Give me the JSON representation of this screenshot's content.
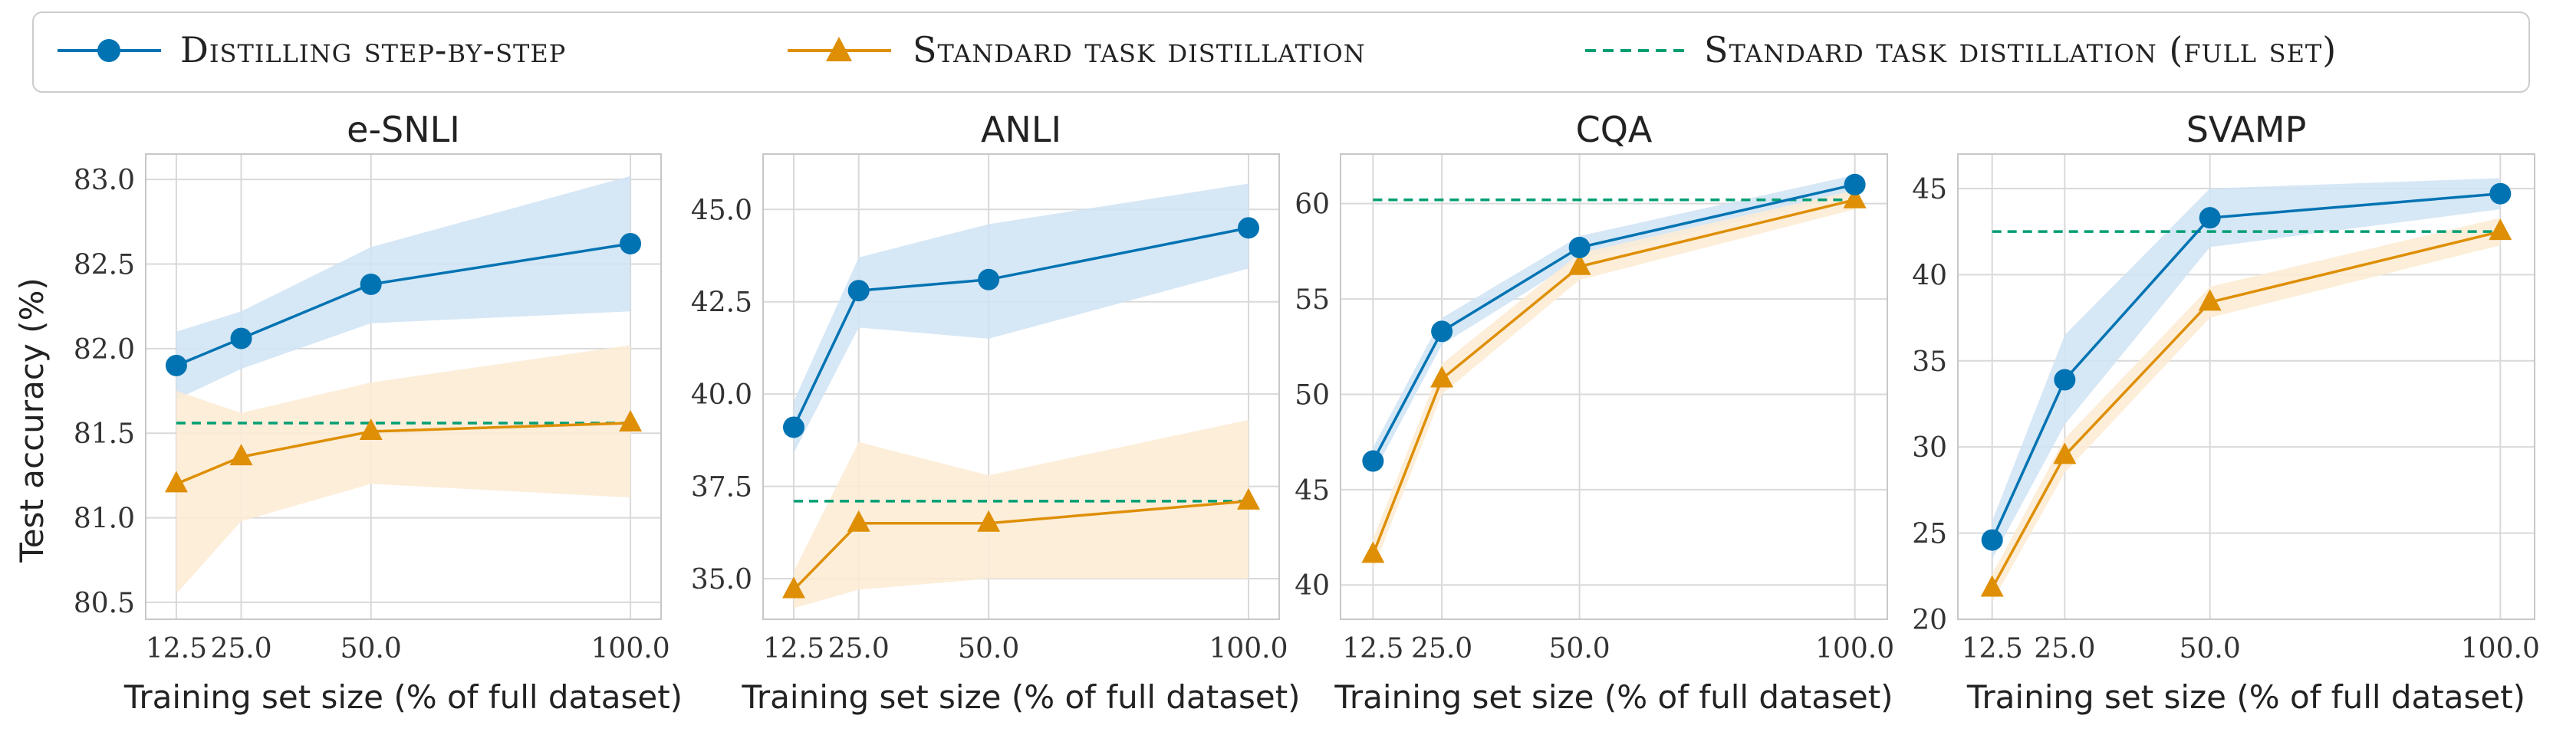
{
  "colors": {
    "blue": "#0173b2",
    "orange": "#de8f05",
    "green": "#029e73",
    "blue_band": "#cfe3f4",
    "orange_band": "#fdebd3"
  },
  "legend": {
    "items": [
      {
        "label": "Distilling step-by-step",
        "marker": "circle",
        "color": "#0173b2",
        "style": "solid"
      },
      {
        "label": "Standard task distillation",
        "marker": "triangle",
        "color": "#de8f05",
        "style": "solid"
      },
      {
        "label": "Standard task distillation (full set)",
        "marker": "none",
        "color": "#029e73",
        "style": "dashed"
      }
    ]
  },
  "ylabel_shared": "Test accuracy (%)",
  "chart_data": [
    {
      "type": "line",
      "title": "e-SNLI",
      "xlabel": "Training set size (% of full dataset)",
      "x": [
        12.5,
        25.0,
        50.0,
        100.0
      ],
      "xticks": [
        "12.5",
        "25.0",
        "50.0",
        "100.0"
      ],
      "ylim": [
        80.4,
        83.15
      ],
      "yticks": [
        "80.5",
        "81.0",
        "81.5",
        "82.0",
        "82.5",
        "83.0"
      ],
      "series": [
        {
          "name": "Distilling step-by-step",
          "values": [
            81.9,
            82.06,
            82.38,
            82.62
          ],
          "lower": [
            81.7,
            81.88,
            82.15,
            82.22
          ],
          "upper": [
            82.1,
            82.22,
            82.6,
            83.02
          ]
        },
        {
          "name": "Standard task distillation",
          "values": [
            81.2,
            81.36,
            81.51,
            81.56
          ],
          "lower": [
            80.55,
            80.98,
            81.2,
            81.12
          ],
          "upper": [
            81.75,
            81.62,
            81.8,
            82.02
          ]
        }
      ],
      "reference": {
        "name": "Standard task distillation (full set)",
        "value": 81.56
      }
    },
    {
      "type": "line",
      "title": "ANLI",
      "xlabel": "Training set size (% of full dataset)",
      "x": [
        12.5,
        25.0,
        50.0,
        100.0
      ],
      "xticks": [
        "12.5",
        "25.0",
        "50.0",
        "100.0"
      ],
      "ylim": [
        33.9,
        46.5
      ],
      "yticks": [
        "35.0",
        "37.5",
        "40.0",
        "42.5",
        "45.0"
      ],
      "series": [
        {
          "name": "Distilling step-by-step",
          "values": [
            39.1,
            42.8,
            43.1,
            44.5
          ],
          "lower": [
            38.4,
            41.8,
            41.5,
            43.4
          ],
          "upper": [
            39.8,
            43.7,
            44.6,
            45.7
          ]
        },
        {
          "name": "Standard task distillation",
          "values": [
            34.7,
            36.5,
            36.5,
            37.1
          ],
          "lower": [
            34.2,
            34.7,
            35.0,
            35.0
          ],
          "upper": [
            35.2,
            38.7,
            37.8,
            39.3
          ]
        }
      ],
      "reference": {
        "name": "Standard task distillation (full set)",
        "value": 37.1
      }
    },
    {
      "type": "line",
      "title": "CQA",
      "xlabel": "Training set size (% of full dataset)",
      "x": [
        12.5,
        25.0,
        50.0,
        100.0
      ],
      "xticks": [
        "12.5",
        "25.0",
        "50.0",
        "100.0"
      ],
      "ylim": [
        38.2,
        62.6
      ],
      "yticks": [
        "40",
        "45",
        "50",
        "55",
        "60"
      ],
      "series": [
        {
          "name": "Distilling step-by-step",
          "values": [
            46.5,
            53.3,
            57.7,
            61.0
          ],
          "lower": [
            45.8,
            52.6,
            57.1,
            60.5
          ],
          "upper": [
            47.2,
            54.0,
            58.3,
            61.5
          ]
        },
        {
          "name": "Standard task distillation",
          "values": [
            41.6,
            50.8,
            56.7,
            60.2
          ],
          "lower": [
            40.8,
            50.0,
            56.0,
            59.7
          ],
          "upper": [
            42.4,
            51.6,
            57.4,
            60.7
          ]
        }
      ],
      "reference": {
        "name": "Standard task distillation (full set)",
        "value": 60.2
      }
    },
    {
      "type": "line",
      "title": "SVAMP",
      "xlabel": "Training set size (% of full dataset)",
      "x": [
        12.5,
        25.0,
        50.0,
        100.0
      ],
      "xticks": [
        "12.5",
        "25.0",
        "50.0",
        "100.0"
      ],
      "ylim": [
        20.0,
        47.0
      ],
      "yticks": [
        "20",
        "25",
        "30",
        "35",
        "40",
        "45"
      ],
      "series": [
        {
          "name": "Distilling step-by-step",
          "values": [
            24.6,
            33.9,
            43.3,
            44.7
          ],
          "lower": [
            23.5,
            31.3,
            41.6,
            43.8
          ],
          "upper": [
            25.7,
            36.5,
            45.0,
            45.6
          ]
        },
        {
          "name": "Standard task distillation",
          "values": [
            21.8,
            29.5,
            38.4,
            42.5
          ],
          "lower": [
            21.0,
            28.5,
            37.5,
            41.7
          ],
          "upper": [
            22.6,
            30.5,
            39.3,
            43.3
          ]
        }
      ],
      "reference": {
        "name": "Standard task distillation (full set)",
        "value": 42.5
      }
    }
  ]
}
